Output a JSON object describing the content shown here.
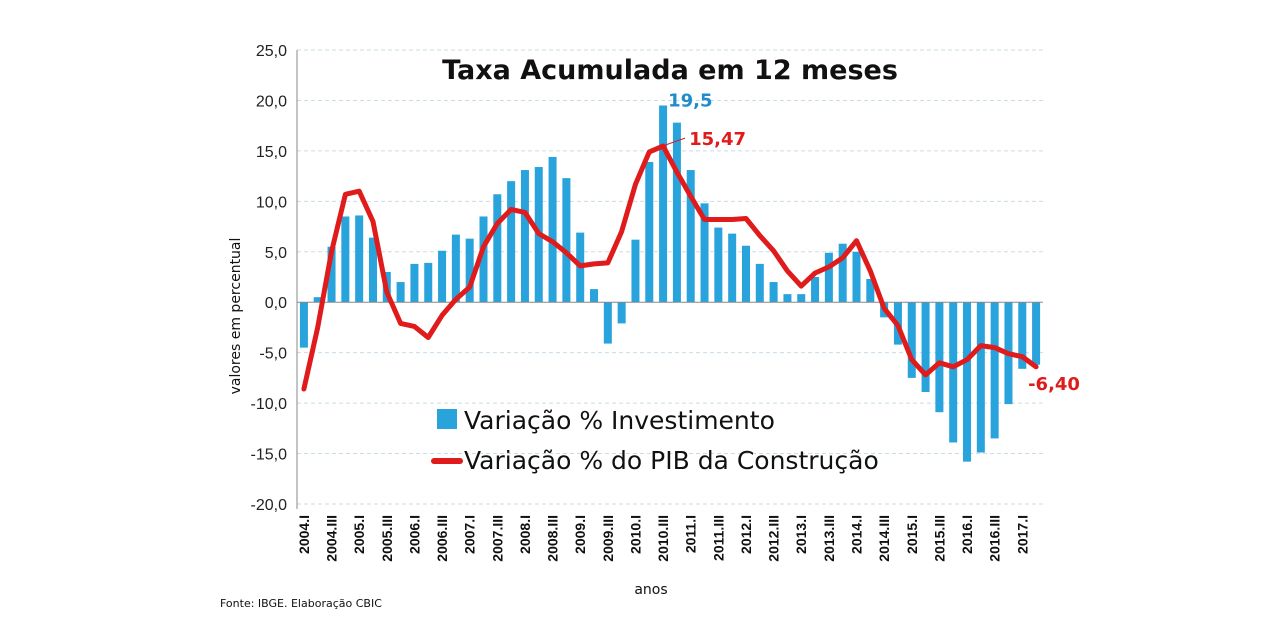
{
  "chart_data": {
    "type": "bar",
    "title": "Taxa Acumulada em 12 meses",
    "xlabel": "anos",
    "ylabel": "valores em percentual",
    "ylim": [
      -20,
      25
    ],
    "yticks": [
      "25,0",
      "20,0",
      "15,0",
      "10,0",
      "5,0",
      "0,0",
      "-5,0",
      "-10,0",
      "-15,0",
      "-20,0"
    ],
    "ytick_values": [
      25,
      20,
      15,
      10,
      5,
      0,
      -5,
      -10,
      -15,
      -20
    ],
    "categories": [
      "2004.I",
      "2004.II",
      "2004.III",
      "2004.IV",
      "2005.I",
      "2005.II",
      "2005.III",
      "2005.IV",
      "2006.I",
      "2006.II",
      "2006.III",
      "2006.IV",
      "2007.I",
      "2007.II",
      "2007.III",
      "2007.IV",
      "2008.I",
      "2008.II",
      "2008.III",
      "2008.IV",
      "2009.I",
      "2009.II",
      "2009.III",
      "2009.IV",
      "2010.I",
      "2010.II",
      "2010.III",
      "2010.IV",
      "2011.I",
      "2011.II",
      "2011.III",
      "2011.IV",
      "2012.I",
      "2012.II",
      "2012.III",
      "2012.IV",
      "2013.I",
      "2013.II",
      "2013.III",
      "2013.IV",
      "2014.I",
      "2014.II",
      "2014.III",
      "2014.IV",
      "2015.I",
      "2015.II",
      "2015.III",
      "2015.IV",
      "2016.I",
      "2016.II",
      "2016.III",
      "2016.IV",
      "2017.I",
      "2017.II"
    ],
    "tick_labels": [
      "2004.I",
      "2004.III",
      "2005.I",
      "2005.III",
      "2006.I",
      "2006.III",
      "2007.I",
      "2007.III",
      "2008.I",
      "2008.III",
      "2009.I",
      "2009.III",
      "2010.I",
      "2010.III",
      "2011.I",
      "2011.III",
      "2012.I",
      "2012.III",
      "2013.I",
      "2013.III",
      "2014.I",
      "2014.III",
      "2015.I",
      "2015.III",
      "2016.I",
      "2016.III",
      "2017.I"
    ],
    "series": [
      {
        "name": "Variação % Investimento",
        "kind": "bar",
        "color": "#29a3dc",
        "values": [
          -4.5,
          0.5,
          5.5,
          8.5,
          8.6,
          6.4,
          3.0,
          2.0,
          3.8,
          3.9,
          5.1,
          6.7,
          6.3,
          8.5,
          10.7,
          12.0,
          13.1,
          13.4,
          14.4,
          12.3,
          6.9,
          1.3,
          -4.1,
          -2.1,
          6.2,
          13.9,
          19.5,
          17.8,
          13.1,
          9.8,
          7.4,
          6.8,
          5.6,
          3.8,
          2.0,
          0.8,
          0.8,
          2.5,
          4.9,
          5.8,
          5.0,
          2.3,
          -1.5,
          -4.2,
          -7.5,
          -8.9,
          -10.9,
          -13.9,
          -15.8,
          -14.9,
          -13.5,
          -10.1,
          -6.6,
          -6.2
        ]
      },
      {
        "name": "Variação % do PIB da Construção",
        "kind": "line",
        "color": "#e01b1b",
        "values": [
          -8.6,
          -2.5,
          5.0,
          10.7,
          11.0,
          8.0,
          1.0,
          -2.1,
          -2.4,
          -3.5,
          -1.3,
          0.3,
          1.5,
          5.5,
          7.8,
          9.2,
          8.9,
          6.8,
          6.0,
          4.9,
          3.6,
          3.8,
          3.9,
          7.0,
          11.7,
          14.9,
          15.47,
          12.9,
          10.5,
          8.2,
          8.2,
          8.2,
          8.3,
          6.6,
          5.1,
          3.1,
          1.6,
          2.9,
          3.5,
          4.4,
          6.1,
          3.1,
          -0.6,
          -2.3,
          -5.7,
          -7.2,
          -6.0,
          -6.4,
          -5.7,
          -4.3,
          -4.5,
          -5.1,
          -5.4,
          -6.4
        ]
      }
    ],
    "annotations": [
      {
        "text": "19,5",
        "series": 0,
        "index": 26,
        "color": "#1f8ccc"
      },
      {
        "text": "15,47",
        "series": 1,
        "index": 26,
        "color": "#e01b1b"
      },
      {
        "text": "-6,40",
        "series": 1,
        "index": 53,
        "color": "#e01b1b"
      }
    ],
    "legend": "inside-bottom-center",
    "grid": true,
    "source": "Fonte: IBGE. Elaboração CBIC"
  }
}
